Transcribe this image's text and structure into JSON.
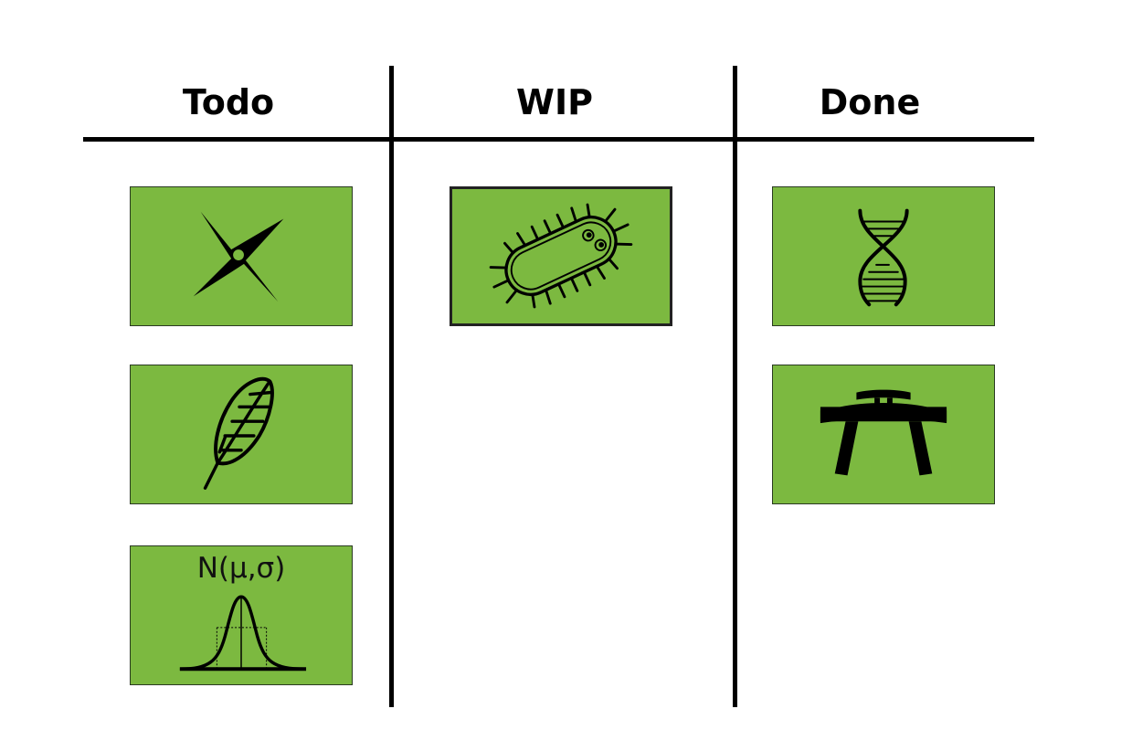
{
  "board": {
    "columns": [
      {
        "title": "Todo"
      },
      {
        "title": "WIP"
      },
      {
        "title": "Done"
      }
    ],
    "cards": {
      "todo": [
        {
          "icon": "shuriken-icon"
        },
        {
          "icon": "feather-icon"
        },
        {
          "icon": "normal-distribution-icon",
          "label": "N(μ,σ)"
        }
      ],
      "wip": [
        {
          "icon": "bacterium-icon"
        }
      ],
      "done": [
        {
          "icon": "dna-icon"
        },
        {
          "icon": "torii-gate-icon"
        }
      ]
    }
  },
  "colors": {
    "card_fill": "#7cb940",
    "card_border": "#2a3a22",
    "ink": "#000000"
  }
}
